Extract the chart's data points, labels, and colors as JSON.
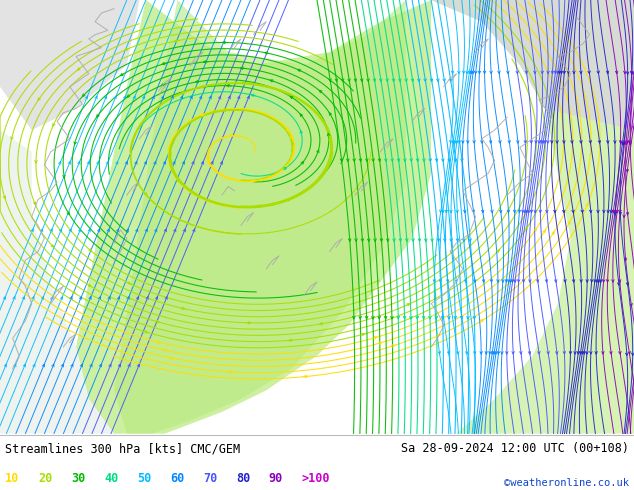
{
  "title_left": "Streamlines 300 hPa [kts] CMC/GEM",
  "title_right": "Sa 28-09-2024 12:00 UTC (00+108)",
  "credit": "©weatheronline.co.uk",
  "legend_values": [
    "10",
    "20",
    "30",
    "40",
    "50",
    "60",
    "70",
    "80",
    "90",
    ">100"
  ],
  "legend_colors": [
    "#ffdd00",
    "#aadd00",
    "#00bb00",
    "#00dd88",
    "#00bbff",
    "#0088ff",
    "#4455ff",
    "#2222cc",
    "#8800bb",
    "#cc00cc"
  ],
  "bg_chart": "#e8e8e8",
  "bg_bottom": "#ffffff",
  "land_light": "#ccf0a0",
  "land_bright": "#b8e880",
  "coast_color": "#aaaaaa",
  "fig_width": 6.34,
  "fig_height": 4.9,
  "dpi": 100
}
